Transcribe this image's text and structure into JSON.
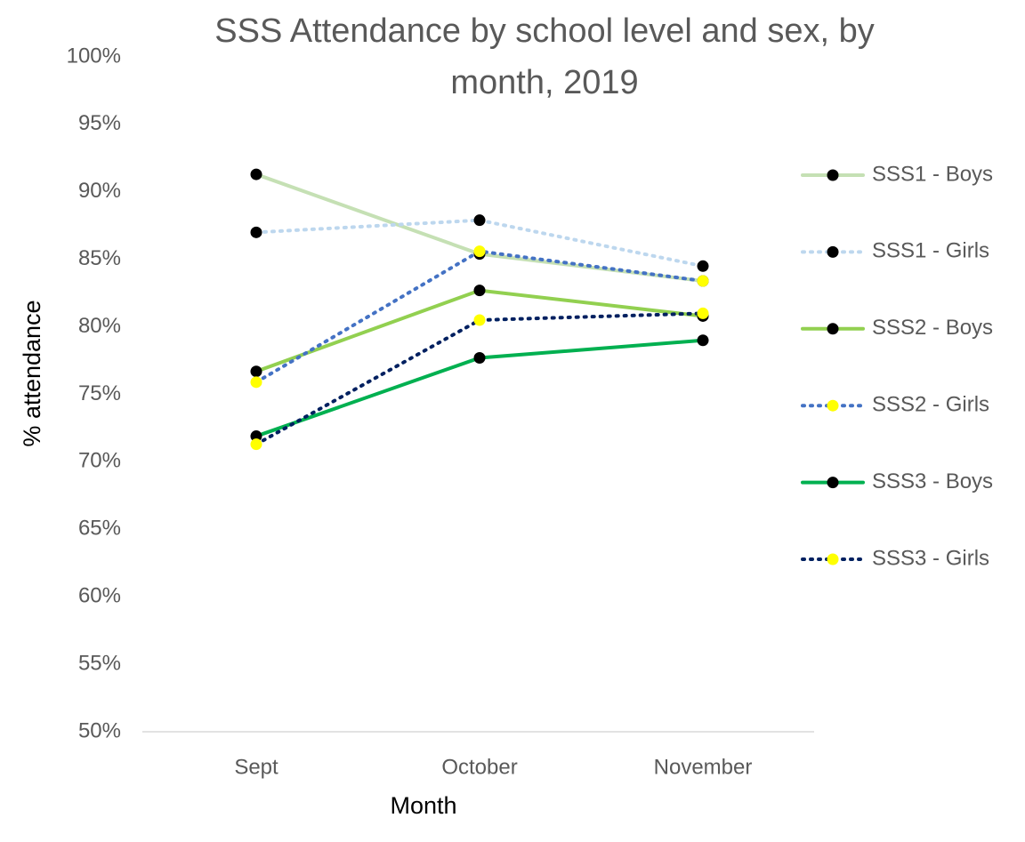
{
  "chart_data": {
    "type": "line",
    "title": "SSS Attendance by school level and sex, by month, 2019",
    "x_label": "Month",
    "y_label": "% attendance",
    "categories": [
      "Sept",
      "October",
      "November"
    ],
    "series": [
      {
        "name": "SSS1 - Boys",
        "color": "#c5e0b4",
        "marker_color": "#000000",
        "dash": "solid",
        "values": [
          91.3,
          85.4,
          83.4
        ]
      },
      {
        "name": "SSS1 - Girls",
        "color": "#bdd7ee",
        "marker_color": "#000000",
        "dash": "dotted",
        "values": [
          87.0,
          87.9,
          84.5
        ]
      },
      {
        "name": "SSS2 - Boys",
        "color": "#92d050",
        "marker_color": "#000000",
        "dash": "solid",
        "values": [
          76.7,
          82.7,
          80.8
        ]
      },
      {
        "name": "SSS2 - Girls",
        "color": "#4472c4",
        "marker_color": "#ffff00",
        "dash": "dotted",
        "values": [
          75.9,
          85.6,
          83.4
        ]
      },
      {
        "name": "SSS3 - Boys",
        "color": "#00b050",
        "marker_color": "#000000",
        "dash": "solid",
        "values": [
          71.9,
          77.7,
          79.0
        ]
      },
      {
        "name": "SSS3 - Girls",
        "color": "#002060",
        "marker_color": "#ffff00",
        "dash": "dotted",
        "values": [
          71.3,
          80.5,
          81.0
        ]
      }
    ],
    "ylim": [
      50,
      100
    ],
    "yticks": [
      {
        "value": 50,
        "label": "50%"
      },
      {
        "value": 55,
        "label": "55%"
      },
      {
        "value": 60,
        "label": "60%"
      },
      {
        "value": 65,
        "label": "65%"
      },
      {
        "value": 70,
        "label": "70%"
      },
      {
        "value": 75,
        "label": "75%"
      },
      {
        "value": 80,
        "label": "80%"
      },
      {
        "value": 85,
        "label": "85%"
      },
      {
        "value": 90,
        "label": "90%"
      },
      {
        "value": 95,
        "label": "95%"
      },
      {
        "value": 100,
        "label": "100%"
      }
    ],
    "grid": false,
    "legend": "right"
  }
}
